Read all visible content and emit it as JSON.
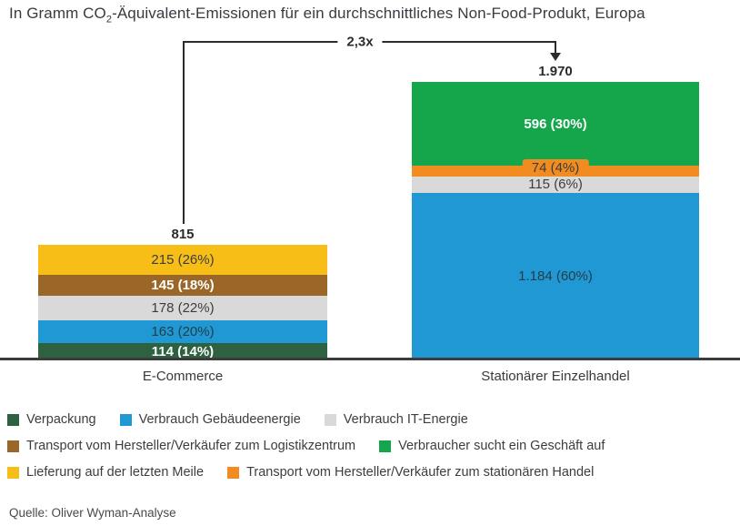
{
  "title": {
    "prefix": "In Gramm CO",
    "subscript": "2",
    "suffix": "-Äquivalent-Emissionen für ein durchschnittliches Non-Food-Produkt, Europa"
  },
  "chart_data": {
    "type": "bar",
    "stacked": true,
    "grid": false,
    "legend_position": "bottom",
    "unit": "Gramm CO2-Äquivalent",
    "categories": [
      "E-Commerce",
      "Stationärer Einzelhandel"
    ],
    "multiplier": {
      "label": "2,3x"
    },
    "bars": [
      {
        "category": "E-Commerce",
        "total": 815,
        "total_label": "815",
        "segments": [
          {
            "name": "Lieferung auf der letzten Meile",
            "value": 215,
            "pct": 26,
            "label": "215 (26%)",
            "color": "#F6BE16",
            "text_color": "#3d3d3d",
            "text_bold": false
          },
          {
            "name": "Transport vom Hersteller/Verkäufer zum Logistikzentrum",
            "value": 145,
            "pct": 18,
            "label": "145 (18%)",
            "color": "#9A6729",
            "text_color": "#FFFFFF",
            "text_bold": true
          },
          {
            "name": "Verbrauch IT-Energie",
            "value": 178,
            "pct": 22,
            "label": "178 (22%)",
            "color": "#D9D9D9",
            "text_color": "#3d3d3d",
            "text_bold": false
          },
          {
            "name": "Verbrauch Gebäudeenergie",
            "value": 163,
            "pct": 20,
            "label": "163 (20%)",
            "color": "#2098D4",
            "text_color": "#253c49",
            "text_bold": false
          },
          {
            "name": "Verpackung",
            "value": 114,
            "pct": 14,
            "label": "114 (14%)",
            "color": "#2D6140",
            "text_color": "#FFFFFF",
            "text_bold": true
          }
        ]
      },
      {
        "category": "Stationärer Einzelhandel",
        "total": 1970,
        "total_label": "1.970",
        "segments": [
          {
            "name": "Verbraucher sucht ein Geschäft auf",
            "value": 596,
            "pct": 30,
            "label": "596 (30%)",
            "color": "#15A64C",
            "text_color": "#FFFFFF",
            "text_bold": true
          },
          {
            "name": "Transport vom Hersteller/Verkäufer zum stationären Handel",
            "value": 74,
            "pct": 4,
            "label": "74 (4%)",
            "color": "#F18C21",
            "text_color": "#3d3d3d",
            "text_bold": false
          },
          {
            "name": "Verbrauch IT-Energie",
            "value": 115,
            "pct": 6,
            "label": "115 (6%)",
            "color": "#D9D9D9",
            "text_color": "#3d3d3d",
            "text_bold": false
          },
          {
            "name": "Verbrauch Gebäudeenergie",
            "value": 1184,
            "pct": 60,
            "label": "1.184 (60%)",
            "color": "#2098D4",
            "text_color": "#253c49",
            "text_bold": false
          }
        ]
      }
    ]
  },
  "legend": {
    "rows": [
      [
        {
          "label": "Verpackung",
          "color": "#2D6140"
        },
        {
          "label": "Verbrauch Gebäudeenergie",
          "color": "#2098D4"
        },
        {
          "label": "Verbrauch IT-Energie",
          "color": "#D9D9D9"
        }
      ],
      [
        {
          "label": "Transport vom Hersteller/Verkäufer zum Logistikzentrum",
          "color": "#9A6729"
        },
        {
          "label": "Verbraucher sucht ein Geschäft auf",
          "color": "#15A64C"
        }
      ],
      [
        {
          "label": "Lieferung auf der letzten Meile",
          "color": "#F6BE16"
        },
        {
          "label": "Transport vom Hersteller/Verkäufer zum stationären Handel",
          "color": "#F18C21"
        }
      ]
    ]
  },
  "source": "Quelle: Oliver Wyman-Analyse"
}
